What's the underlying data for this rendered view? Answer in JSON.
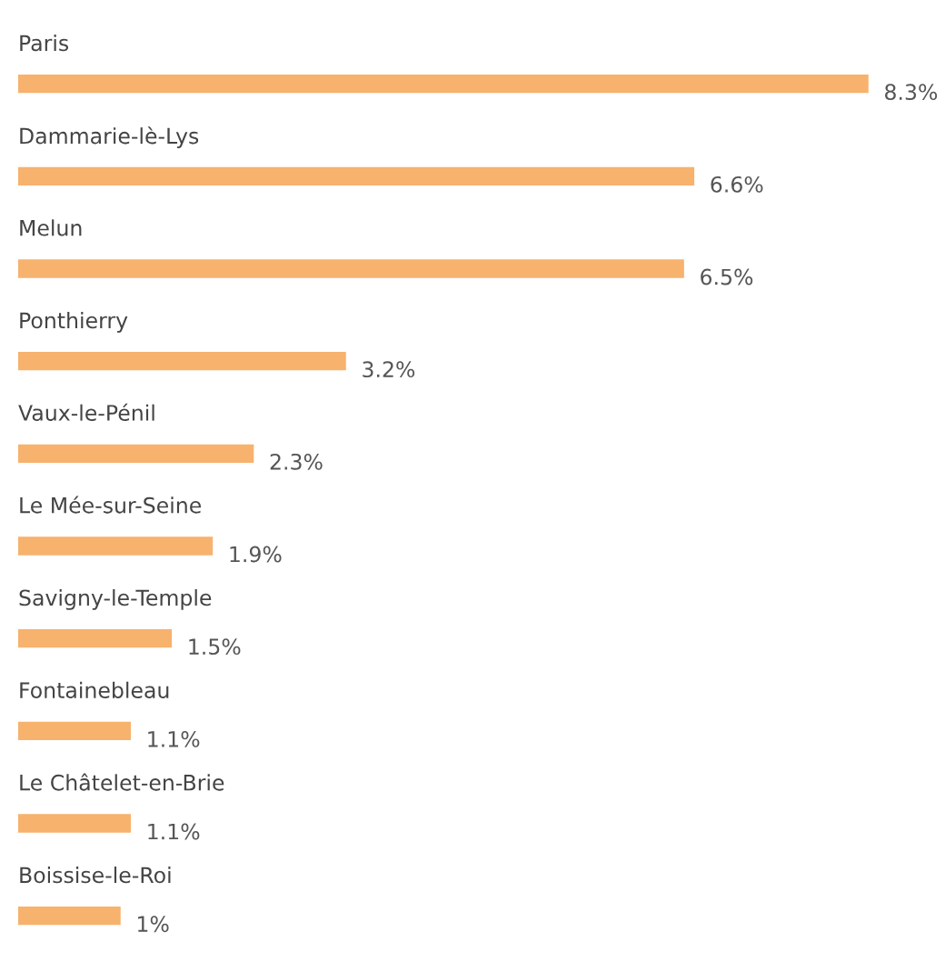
{
  "chart_data": {
    "type": "bar",
    "orientation": "horizontal",
    "categories": [
      "Paris",
      "Dammarie-lè-Lys",
      "Melun",
      "Ponthierry",
      "Vaux-le-Pénil",
      "Le Mée-sur-Seine",
      "Savigny-le-Temple",
      "Fontainebleau",
      "Le Châtelet-en-Brie",
      "Boissise-le-Roi"
    ],
    "values": [
      8.3,
      6.6,
      6.5,
      3.2,
      2.3,
      1.9,
      1.5,
      1.1,
      1.1,
      1
    ],
    "value_labels": [
      "8.3%",
      "6.6%",
      "6.5%",
      "3.2%",
      "2.3%",
      "1.9%",
      "1.5%",
      "1.1%",
      "1.1%",
      "1%"
    ],
    "color": "#f7b26e"
  }
}
